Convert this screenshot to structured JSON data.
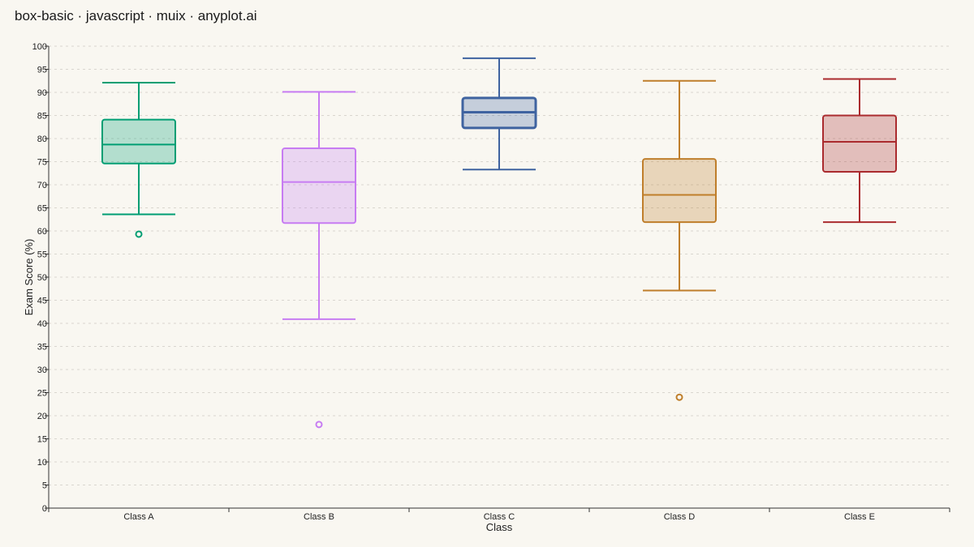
{
  "title": "box-basic · javascript · muix · anyplot.ai",
  "chart_data": {
    "type": "box",
    "title": "box-basic · javascript · muix · anyplot.ai",
    "xlabel": "Class",
    "ylabel": "Exam Score (%)",
    "ylim": [
      0,
      100
    ],
    "y_ticks": [
      0,
      5,
      10,
      15,
      20,
      25,
      30,
      35,
      40,
      45,
      50,
      55,
      60,
      65,
      70,
      75,
      80,
      85,
      90,
      95,
      100
    ],
    "grid": "horizontal dashed",
    "categories": [
      "Class A",
      "Class B",
      "Class C",
      "Class D",
      "Class E"
    ],
    "boxes": [
      {
        "category": "Class A",
        "whisker_low": 63.6,
        "q1": 74.6,
        "median": 78.7,
        "q3": 84.1,
        "whisker_high": 92.1,
        "outliers": [
          59.3
        ],
        "color": "#009e73"
      },
      {
        "category": "Class B",
        "whisker_low": 40.9,
        "q1": 61.7,
        "median": 70.6,
        "q3": 77.9,
        "whisker_high": 90.1,
        "outliers": [
          18.1
        ],
        "color": "#c77cf2"
      },
      {
        "category": "Class C",
        "whisker_low": 73.3,
        "q1": 82.3,
        "median": 85.7,
        "q3": 88.8,
        "whisker_high": 97.4,
        "outliers": [],
        "color": "#3f63a0"
      },
      {
        "category": "Class D",
        "whisker_low": 47.1,
        "q1": 61.9,
        "median": 67.8,
        "q3": 75.6,
        "whisker_high": 92.5,
        "outliers": [
          24.0
        ],
        "color": "#bf7e2b"
      },
      {
        "category": "Class E",
        "whisker_low": 61.9,
        "q1": 72.8,
        "median": 79.3,
        "q3": 85.0,
        "whisker_high": 92.9,
        "outliers": [],
        "color": "#aa2b2e"
      }
    ]
  }
}
